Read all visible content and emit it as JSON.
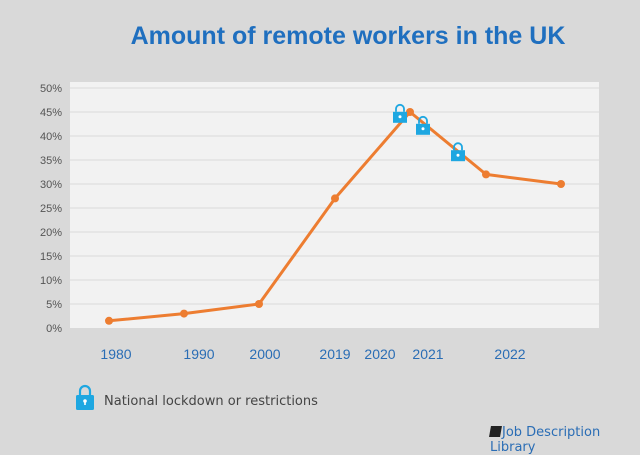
{
  "chart_data": {
    "type": "line",
    "title": "Amount of remote workers in the UK",
    "categories": [
      "1980",
      "1990",
      "2000",
      "2019",
      "2020",
      "2021",
      "2022"
    ],
    "series": [
      {
        "values": [
          1.5,
          3,
          5,
          27,
          45,
          32,
          30
        ],
        "color": "#ed7d31"
      }
    ],
    "ylim": [
      0,
      50
    ],
    "yticks": [
      "0%",
      "5%",
      "10%",
      "15%",
      "20%",
      "25%",
      "30%",
      "35%",
      "40%",
      "45%",
      "50%"
    ],
    "grid": true,
    "annotations": {
      "icon": "lock-icon",
      "color": "#1ea7e1",
      "values": [
        44,
        41.5,
        36
      ]
    },
    "legend": {
      "label": "National lockdown or restrictions",
      "position": "bottom-left"
    }
  },
  "brand": "Job Description Library",
  "colors": {
    "title": "#1f6fbf",
    "background": "#d9d9d9",
    "plot": "#f2f2f2"
  }
}
